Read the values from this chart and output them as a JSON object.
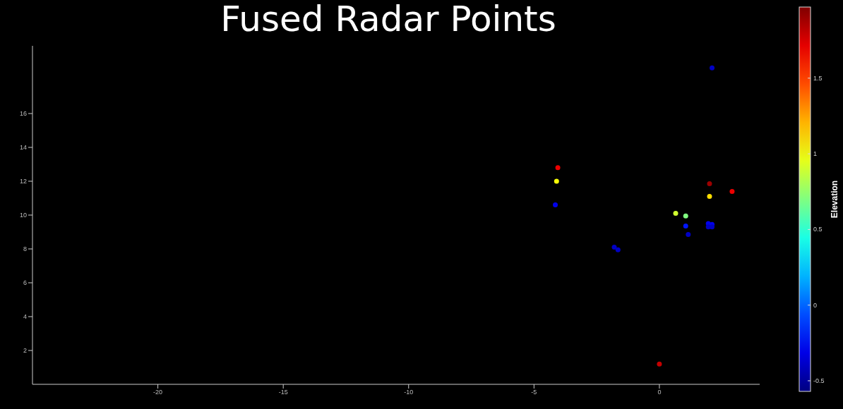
{
  "chart_data": {
    "type": "scatter",
    "title": "Fused Radar Points",
    "clabel": "Elevation",
    "x": [
      0,
      2.1,
      -4.05,
      -4.1,
      -4.15,
      -1.8,
      -1.65,
      0.65,
      1.05,
      1.05,
      1.15,
      2.0,
      2.0,
      2.9,
      1.95,
      2.1,
      1.95,
      2.1
    ],
    "values": [
      1.2,
      18.7,
      12.8,
      12.0,
      10.6,
      8.1,
      7.95,
      10.1,
      9.95,
      9.35,
      8.85,
      11.85,
      11.1,
      11.4,
      9.5,
      9.45,
      9.3,
      9.3
    ],
    "cvalues": [
      1.8,
      -0.4,
      1.7,
      1.0,
      -0.3,
      -0.4,
      -0.4,
      0.9,
      0.7,
      -0.2,
      -0.4,
      1.9,
      1.1,
      1.7,
      -0.3,
      -0.3,
      -0.4,
      -0.4
    ],
    "xlim": [
      -25,
      4
    ],
    "xticks": [
      -20,
      -15,
      -10,
      -5,
      0
    ],
    "ylim": [
      0,
      20
    ],
    "yticks": [
      2,
      4,
      6,
      8,
      10,
      12,
      14,
      16
    ],
    "clim": [
      -0.57,
      1.97
    ],
    "cticks": [
      -0.5,
      0,
      0.5,
      1,
      1.5
    ],
    "grid": false,
    "legend": false,
    "marker": "circle"
  }
}
